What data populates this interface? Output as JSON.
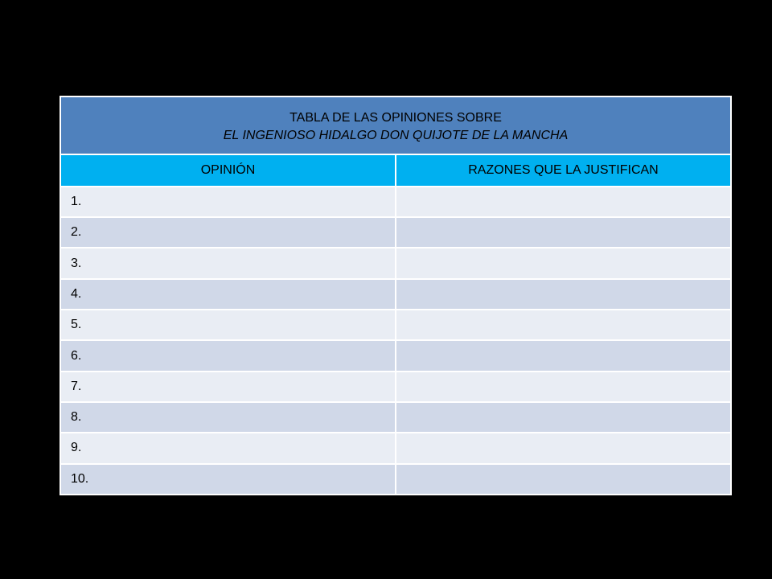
{
  "title": {
    "line1": "TABLA DE LAS OPINIONES SOBRE",
    "line2": "EL INGENIOSO HIDALGO DON QUIJOTE DE LA MANCHA"
  },
  "columns": [
    "OPINIÓN",
    "RAZONES QUE LA JUSTIFICAN"
  ],
  "rows": [
    {
      "opinion": "1.",
      "razones": ""
    },
    {
      "opinion": "2.",
      "razones": ""
    },
    {
      "opinion": "3.",
      "razones": ""
    },
    {
      "opinion": "4.",
      "razones": ""
    },
    {
      "opinion": "5.",
      "razones": ""
    },
    {
      "opinion": "6.",
      "razones": ""
    },
    {
      "opinion": "7.",
      "razones": ""
    },
    {
      "opinion": "8.",
      "razones": ""
    },
    {
      "opinion": "9.",
      "razones": ""
    },
    {
      "opinion": "10.",
      "razones": ""
    }
  ],
  "colors": {
    "background": "#000000",
    "title_fill": "#4f81bd",
    "header_fill": "#00b0f0",
    "row_light": "#e9edf4",
    "row_dark": "#d0d8e8"
  }
}
